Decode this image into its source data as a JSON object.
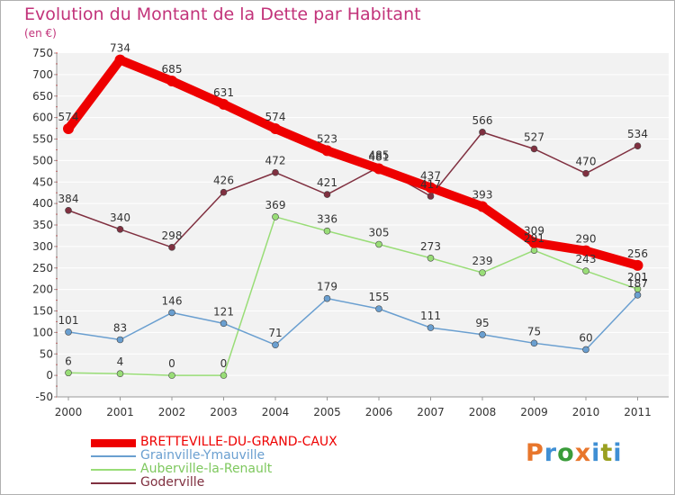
{
  "title": "Evolution du Montant de la Dette par Habitant",
  "unit": "(en €)",
  "brand": {
    "letters": [
      "P",
      "r",
      "o",
      "x",
      "i",
      "t",
      "i"
    ],
    "colors": [
      "#e8762c",
      "#3f8fd4",
      "#3a9c3a",
      "#e8762c",
      "#3f8fd4",
      "#9aa020",
      "#3f8fd4"
    ]
  },
  "chart_data": {
    "type": "line",
    "title": "Evolution du Montant de la Dette par Habitant",
    "ylabel": "(en €)",
    "xlabel": "",
    "categories": [
      "2000",
      "2001",
      "2002",
      "2003",
      "2004",
      "2005",
      "2006",
      "2007",
      "2008",
      "2009",
      "2010",
      "2011"
    ],
    "ylim": [
      -50,
      750
    ],
    "yticks": [
      -50,
      0,
      50,
      100,
      150,
      200,
      250,
      300,
      350,
      400,
      450,
      500,
      550,
      600,
      650,
      700,
      750
    ],
    "grid": "horizontal",
    "legend_position": "bottom",
    "series": [
      {
        "name": "BRETTEVILLE-DU-GRAND-CAUX",
        "color": "#ee0000",
        "values": [
          574,
          734,
          685,
          631,
          574,
          523,
          481,
          437,
          393,
          309,
          290,
          256
        ]
      },
      {
        "name": "Grainville-Ymauville",
        "color": "#6a9fd0",
        "values": [
          101,
          83,
          146,
          121,
          71,
          179,
          155,
          111,
          95,
          75,
          60,
          187
        ]
      },
      {
        "name": "Auberville-la-Renault",
        "color": "#99dd77",
        "values": [
          6,
          4,
          0,
          0,
          369,
          336,
          305,
          273,
          239,
          291,
          243,
          201
        ]
      },
      {
        "name": "Goderville",
        "color": "#803040",
        "values": [
          384,
          340,
          298,
          426,
          472,
          421,
          485,
          417,
          566,
          527,
          470,
          534
        ]
      }
    ]
  }
}
